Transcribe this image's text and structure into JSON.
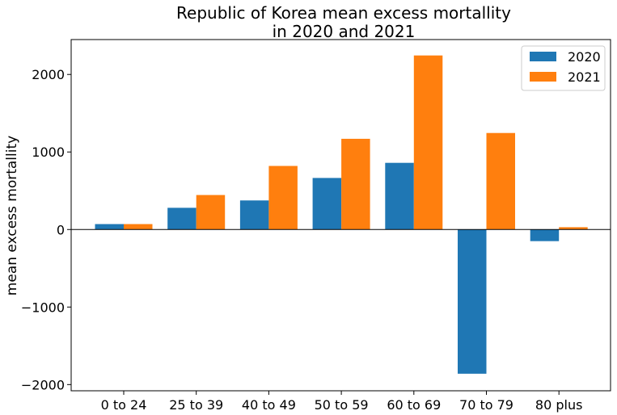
{
  "chart_data": {
    "type": "bar",
    "title_lines": [
      "Republic of Korea mean excess mortallity",
      "in 2020 and 2021"
    ],
    "xlabel": "",
    "ylabel": "mean excess mortallity",
    "categories": [
      "0 to 24",
      "25 to 39",
      "40 to 49",
      "50 to 59",
      "60 to 69",
      "70 to 79",
      "80 plus"
    ],
    "series": [
      {
        "name": "2020",
        "color": "#1f77b4",
        "values": [
          70,
          280,
          375,
          665,
          860,
          -1860,
          -150
        ]
      },
      {
        "name": "2021",
        "color": "#ff7f0e",
        "values": [
          70,
          445,
          820,
          1170,
          2245,
          1245,
          30
        ]
      }
    ],
    "ylim": [
      -2080,
      2450
    ],
    "yticks": [
      -2000,
      -1000,
      0,
      1000,
      2000
    ],
    "ytick_labels": [
      "−2000",
      "−1000",
      "0",
      "1000",
      "2000"
    ],
    "zero_line": true,
    "grid": false,
    "legend_position": "top-right"
  }
}
